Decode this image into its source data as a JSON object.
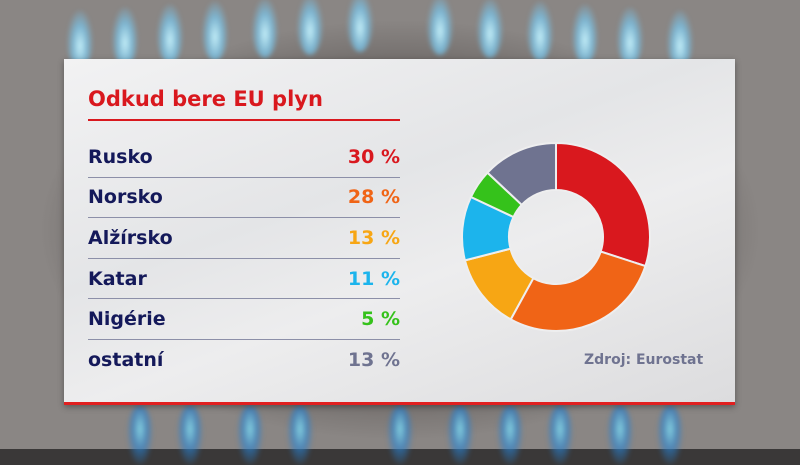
{
  "title": "Odkud bere EU plyn",
  "rows": [
    {
      "label": "Rusko",
      "value": "30 %",
      "color": "#d9181e"
    },
    {
      "label": "Norsko",
      "value": "28 %",
      "color": "#f06416"
    },
    {
      "label": "Alžírsko",
      "value": "13 %",
      "color": "#f7a614"
    },
    {
      "label": "Katar",
      "value": "11 %",
      "color": "#1cb4ec"
    },
    {
      "label": "Nigérie",
      "value": "5 %",
      "color": "#35c21b"
    },
    {
      "label": "ostatní",
      "value": "13 %",
      "color": "#6f7390"
    }
  ],
  "source": "Zdroj: Eurostat",
  "chart_data": {
    "type": "pie",
    "subtype": "donut",
    "title": "Odkud bere EU plyn",
    "categories": [
      "Rusko",
      "Norsko",
      "Alžírsko",
      "Katar",
      "Nigérie",
      "ostatní"
    ],
    "values": [
      30,
      28,
      13,
      11,
      5,
      13
    ],
    "unit": "%",
    "colors": [
      "#d9181e",
      "#f06416",
      "#f7a614",
      "#1cb4ec",
      "#35c21b",
      "#6f7390"
    ],
    "start_angle": "12 o'clock, clockwise",
    "legend": "table on left",
    "source": "Zdroj: Eurostat"
  }
}
